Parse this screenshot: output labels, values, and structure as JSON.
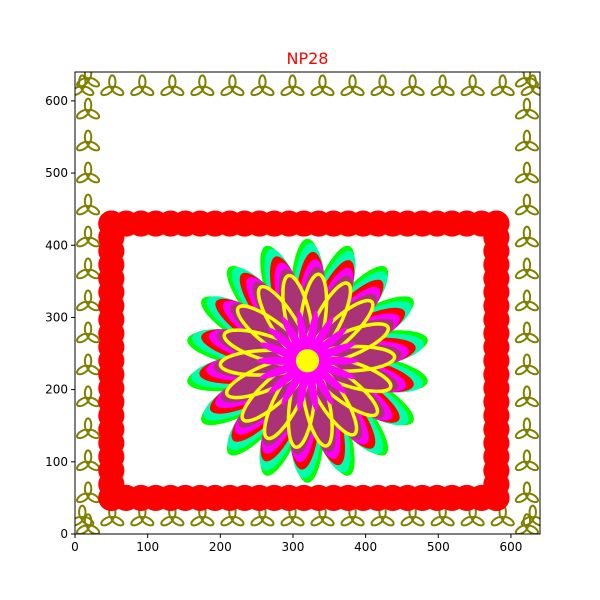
{
  "chart_data": {
    "type": "other",
    "title": "NP28",
    "title_color": "#ff0000",
    "xlabel": "",
    "ylabel": "",
    "xlim": [
      0,
      640
    ],
    "ylim": [
      0,
      640
    ],
    "x_ticks": [
      0,
      100,
      200,
      300,
      400,
      500,
      600
    ],
    "y_ticks": [
      0,
      100,
      200,
      300,
      400,
      500,
      600
    ],
    "grid": false,
    "legend": "none",
    "elements": {
      "border_trefoils": {
        "color": "#808000",
        "x_range": [
          10,
          630
        ],
        "y_range": [
          10,
          630
        ],
        "note_bounds": {
          "x0": 10,
          "x1": 630,
          "y0": 10,
          "y1": 630
        }
      },
      "red_frame": {
        "color": "#ff0000",
        "x0": 50,
        "x1": 580,
        "y0": 50,
        "y1": 430
      },
      "flower": {
        "center": [
          320,
          240
        ],
        "petals": 18,
        "layers": [
          {
            "color": "#00ff00",
            "length": 168
          },
          {
            "color": "#00ffaa",
            "length": 162
          },
          {
            "color": "#ff0000",
            "length": 150
          },
          {
            "color": "#ff00ff",
            "length": 140
          },
          {
            "color": "#aa3377",
            "length": 130
          },
          {
            "color": "#ffff00",
            "length": 120
          }
        ],
        "inner_star_color": "#ff00ff",
        "center_color": "#ffff00"
      }
    }
  }
}
